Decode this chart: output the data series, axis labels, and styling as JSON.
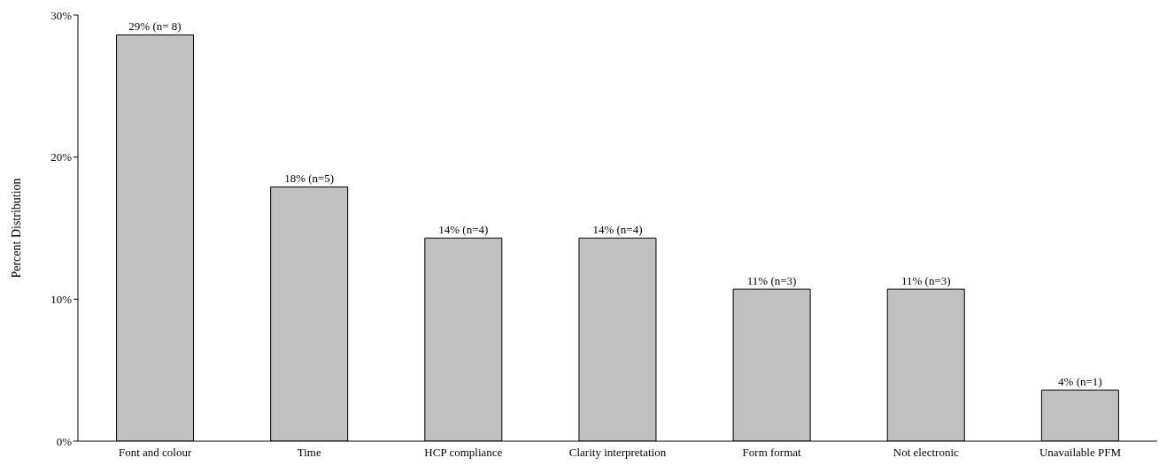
{
  "chart_data": {
    "type": "bar",
    "ylabel": "Percent Distribution",
    "categories": [
      "Font and colour",
      "Time",
      "HCP compliance",
      "Clarity interpretation",
      "Form format",
      "Not electronic",
      "Unavailable PFM"
    ],
    "values": [
      28.6,
      17.9,
      14.3,
      14.3,
      10.7,
      10.7,
      3.6
    ],
    "value_labels": [
      "29% (n= 8)",
      "18% (n=5)",
      "14% (n=4)",
      "14% (n=4)",
      "11% (n=3)",
      "11% (n=3)",
      "4% (n=1)"
    ],
    "color": "#c0c0c0",
    "ylim": [
      0,
      30
    ],
    "yticks": [
      {
        "value": 0,
        "label": "0%"
      },
      {
        "value": 10,
        "label": "10%"
      },
      {
        "value": 20,
        "label": "20%"
      },
      {
        "value": 30,
        "label": "30%"
      }
    ],
    "grid": false,
    "legend": false
  }
}
